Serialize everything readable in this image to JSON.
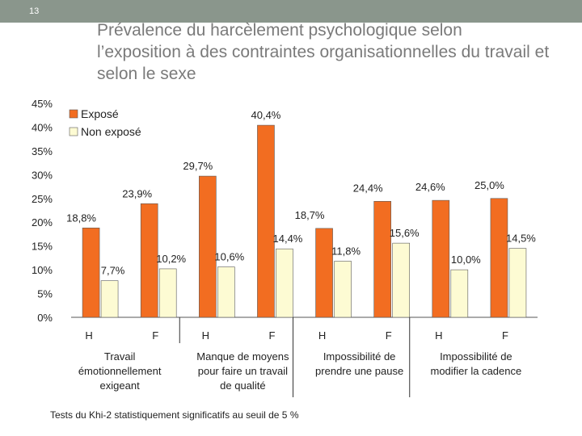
{
  "slide": {
    "number": "13"
  },
  "title": "Prévalence du harcèlement psychologique selon l’exposition à des contraintes organisationnelles du travail et selon le sexe",
  "footnote": "Tests du Khi-2 statistiquement significatifs au seuil de 5 %",
  "colors": {
    "header_bar": "#8a968c",
    "expose": "#f26d21",
    "non_expose": "#fdfbd3",
    "bar_stroke": "#5a5a5a"
  },
  "chart_data": {
    "type": "bar",
    "title": "",
    "xlabel": "",
    "ylabel": "",
    "ylim": [
      0,
      45
    ],
    "yticks": [
      "0%",
      "5%",
      "10%",
      "15%",
      "20%",
      "25%",
      "30%",
      "35%",
      "40%",
      "45%"
    ],
    "legend_position": "top-left",
    "grid": false,
    "categories": [
      "H",
      "F",
      "H",
      "F",
      "H",
      "F",
      "H",
      "F"
    ],
    "groups": [
      "Travail émotionnellement exigeant",
      "Manque de moyens pour faire un travail de qualité",
      "Impossibilité de prendre une pause",
      "Impossibilité de modifier la cadence"
    ],
    "series": [
      {
        "name": "Exposé",
        "values": [
          18.8,
          23.9,
          29.7,
          40.4,
          18.7,
          24.4,
          24.6,
          25.0
        ],
        "labels": [
          "18,8%",
          "23,9%",
          "29,7%",
          "40,4%",
          "18,7%",
          "24,4%",
          "24,6%",
          "25,0%"
        ]
      },
      {
        "name": "Non exposé",
        "values": [
          7.7,
          10.2,
          10.6,
          14.4,
          11.8,
          15.6,
          10.0,
          14.5
        ],
        "labels": [
          "7,7%",
          "10,2%",
          "10,6%",
          "14,4%",
          "11,8%",
          "15,6%",
          "10,0%",
          "14,5%"
        ]
      }
    ]
  }
}
